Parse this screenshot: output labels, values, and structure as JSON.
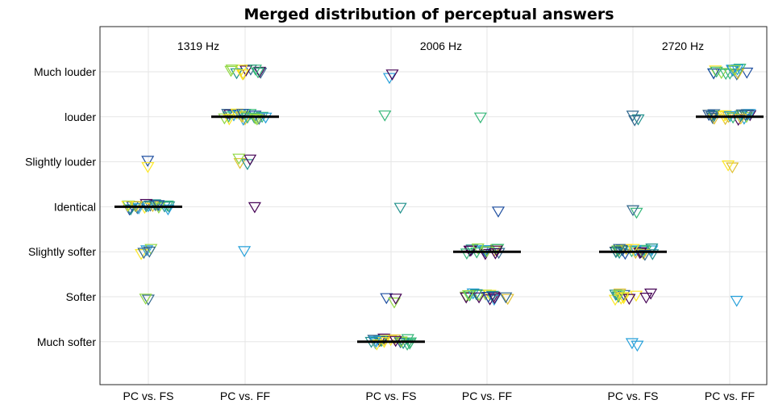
{
  "chart_data": {
    "type": "scatter",
    "title": "Merged distribution of perceptual answers",
    "y_categories": [
      "Much softer",
      "Softer",
      "Slightly softer",
      "Identical",
      "Slightly louder",
      "louder",
      "Much louder"
    ],
    "x_tick_labels": [
      "PC vs. FS",
      "PC vs. FF",
      "PC vs. FS",
      "PC vs. FF",
      "PC vs. FS",
      "PC vs. FF"
    ],
    "panel_labels": [
      "1319 Hz",
      "2006 Hz",
      "2720 Hz"
    ],
    "grid": true,
    "marker": "downward-triangle",
    "palette": [
      "#440154",
      "#31688e",
      "#21918c",
      "#35b779",
      "#90d743",
      "#fde725",
      "#e0c030",
      "#26a0da",
      "#1f4fa0"
    ],
    "groups": [
      {
        "panel": "1319 Hz",
        "comparison": "PC vs. FS",
        "counts": {
          "Much softer": 0,
          "Softer": 2,
          "Slightly softer": 5,
          "Identical": 24,
          "Slightly louder": 2,
          "louder": 0,
          "Much louder": 0
        },
        "median": "Identical"
      },
      {
        "panel": "1319 Hz",
        "comparison": "PC vs. FF",
        "counts": {
          "Much softer": 0,
          "Softer": 0,
          "Slightly softer": 1,
          "Identical": 1,
          "Slightly louder": 4,
          "louder": 24,
          "Much louder": 12
        },
        "median": "louder"
      },
      {
        "panel": "2006 Hz",
        "comparison": "PC vs. FS",
        "counts": {
          "Much softer": 22,
          "Softer": 3,
          "Slightly softer": 0,
          "Identical": 1,
          "Slightly louder": 0,
          "louder": 1,
          "Much louder": 2
        },
        "median": "Much softer"
      },
      {
        "panel": "2006 Hz",
        "comparison": "PC vs. FF",
        "counts": {
          "Much softer": 0,
          "Softer": 18,
          "Slightly softer": 18,
          "Identical": 1,
          "Slightly louder": 0,
          "louder": 1,
          "Much louder": 0
        },
        "median": "Slightly softer"
      },
      {
        "panel": "2720 Hz",
        "comparison": "PC vs. FS",
        "counts": {
          "Much softer": 2,
          "Softer": 14,
          "Slightly softer": 26,
          "Identical": 2,
          "Slightly louder": 0,
          "louder": 3,
          "Much louder": 0
        },
        "median": "Slightly softer"
      },
      {
        "panel": "2720 Hz",
        "comparison": "PC vs. FF",
        "counts": {
          "Much softer": 0,
          "Softer": 1,
          "Slightly softer": 0,
          "Identical": 0,
          "Slightly louder": 2,
          "louder": 26,
          "Much louder": 16
        },
        "median": "louder"
      }
    ]
  }
}
